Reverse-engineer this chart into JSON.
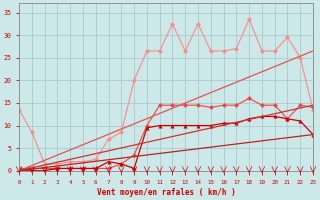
{
  "bg_color": "#cce8e8",
  "grid_color": "#aacccc",
  "xlabel": "Vent moyen/en rafales ( km/h )",
  "xlim": [
    0,
    23
  ],
  "ylim": [
    0,
    37
  ],
  "yticks": [
    0,
    5,
    10,
    15,
    20,
    25,
    30,
    35
  ],
  "xticks": [
    0,
    1,
    2,
    3,
    4,
    5,
    6,
    7,
    8,
    9,
    10,
    11,
    12,
    13,
    14,
    15,
    16,
    17,
    18,
    19,
    20,
    21,
    22,
    23
  ],
  "series": [
    {
      "name": "rafales_max",
      "color": "#ff8888",
      "linewidth": 0.8,
      "marker": "D",
      "markersize": 2.2,
      "x": [
        0,
        1,
        2,
        3,
        4,
        5,
        6,
        7,
        8,
        9,
        10,
        11,
        12,
        13,
        14,
        15,
        16,
        17,
        18,
        19,
        20,
        21,
        22,
        23
      ],
      "y": [
        13.5,
        8.5,
        1.5,
        1.5,
        2.0,
        2.0,
        2.5,
        7.0,
        8.5,
        20.0,
        26.5,
        26.5,
        32.5,
        26.5,
        32.5,
        26.5,
        26.5,
        27.0,
        33.5,
        26.5,
        26.5,
        29.5,
        25.0,
        13.5
      ]
    },
    {
      "name": "vent_moyen_markers",
      "color": "#ee4444",
      "linewidth": 0.8,
      "marker": "D",
      "markersize": 2.2,
      "x": [
        0,
        1,
        2,
        3,
        4,
        5,
        6,
        7,
        8,
        9,
        10,
        11,
        12,
        13,
        14,
        15,
        16,
        17,
        18,
        19,
        20,
        21,
        22,
        23
      ],
      "y": [
        0.5,
        0.5,
        0.5,
        0.5,
        0.5,
        0.5,
        0.5,
        0.5,
        1.5,
        3.5,
        10.0,
        14.5,
        14.5,
        14.5,
        14.5,
        14.0,
        14.5,
        14.5,
        16.0,
        14.5,
        14.5,
        11.5,
        14.5,
        14.0
      ]
    },
    {
      "name": "vent_triangle",
      "color": "#cc0000",
      "linewidth": 0.9,
      "marker": "^",
      "markersize": 2.5,
      "x": [
        0,
        1,
        2,
        3,
        4,
        5,
        6,
        7,
        8,
        9,
        10,
        11,
        12,
        13,
        14,
        15,
        16,
        17,
        18,
        19,
        20,
        21,
        22,
        23
      ],
      "y": [
        0.0,
        0.0,
        0.0,
        0.5,
        0.5,
        0.5,
        0.5,
        2.0,
        1.5,
        0.5,
        9.5,
        10.0,
        10.0,
        10.0,
        10.0,
        10.0,
        10.5,
        10.5,
        11.5,
        12.0,
        12.0,
        11.5,
        11.0,
        8.0
      ]
    },
    {
      "name": "ref_line_top",
      "color": "#dd5555",
      "linewidth": 0.9,
      "marker": null,
      "x": [
        0,
        23
      ],
      "y": [
        0,
        26.5
      ]
    },
    {
      "name": "ref_line_mid",
      "color": "#cc3333",
      "linewidth": 0.9,
      "marker": null,
      "x": [
        0,
        23
      ],
      "y": [
        0,
        14.5
      ]
    },
    {
      "name": "ref_line_bot",
      "color": "#bb2222",
      "linewidth": 0.9,
      "marker": null,
      "x": [
        0,
        23
      ],
      "y": [
        0,
        8.0
      ]
    }
  ]
}
